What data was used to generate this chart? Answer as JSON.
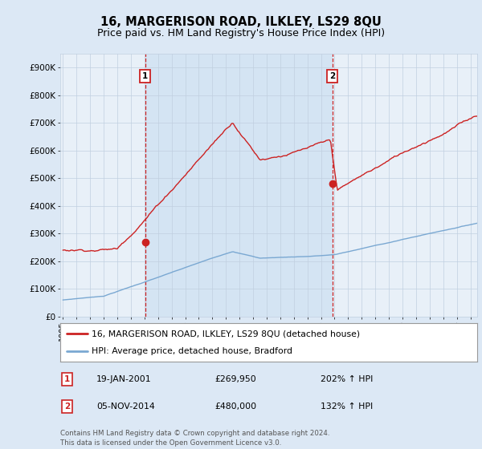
{
  "title": "16, MARGERISON ROAD, ILKLEY, LS29 8QU",
  "subtitle": "Price paid vs. HM Land Registry's House Price Index (HPI)",
  "ylim": [
    0,
    950000
  ],
  "yticks": [
    0,
    100000,
    200000,
    300000,
    400000,
    500000,
    600000,
    700000,
    800000,
    900000
  ],
  "ytick_labels": [
    "£0",
    "£100K",
    "£200K",
    "£300K",
    "£400K",
    "£500K",
    "£600K",
    "£700K",
    "£800K",
    "£900K"
  ],
  "line_color_red": "#cc2222",
  "line_color_blue": "#7aa8d2",
  "dashed_color": "#cc2222",
  "background_color": "#dce8f5",
  "plot_bg": "#e8f0f8",
  "grid_color": "#c0cfe0",
  "title_fontsize": 10.5,
  "subtitle_fontsize": 9,
  "purchase1_x": 2001.05,
  "purchase1_y": 269950,
  "purchase1_label": "1",
  "purchase2_x": 2014.85,
  "purchase2_y": 480000,
  "purchase2_label": "2",
  "legend_line1": "16, MARGERISON ROAD, ILKLEY, LS29 8QU (detached house)",
  "legend_line2": "HPI: Average price, detached house, Bradford",
  "table_row1": [
    "1",
    "19-JAN-2001",
    "£269,950",
    "202% ↑ HPI"
  ],
  "table_row2": [
    "2",
    "05-NOV-2014",
    "£480,000",
    "132% ↑ HPI"
  ],
  "footnote": "Contains HM Land Registry data © Crown copyright and database right 2024.\nThis data is licensed under the Open Government Licence v3.0.",
  "xmin": 1994.8,
  "xmax": 2025.5,
  "shade_x1": 2001.05,
  "shade_x2": 2014.85
}
